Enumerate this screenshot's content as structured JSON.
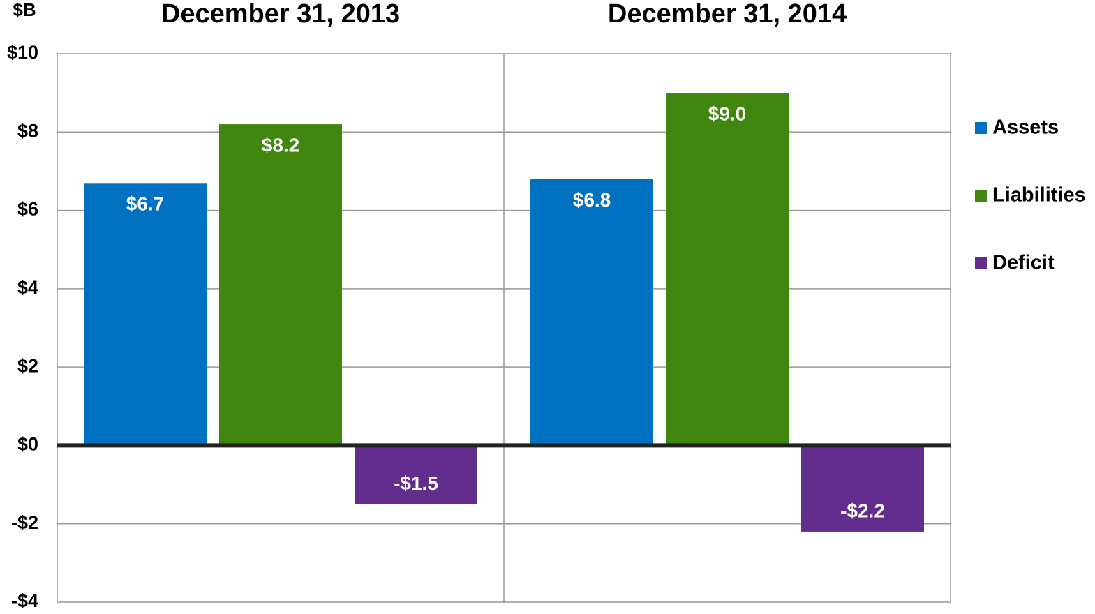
{
  "chart_data": {
    "type": "bar",
    "y_axis_label": "$B",
    "categories": [
      "December 31, 2013",
      "December 31, 2014"
    ],
    "series": [
      {
        "name": "Assets",
        "color": "#0070c0",
        "values": [
          6.7,
          6.8
        ],
        "value_labels": [
          "$6.7",
          "$6.8"
        ]
      },
      {
        "name": "Liabilities",
        "color": "#41860e",
        "values": [
          8.2,
          9.0
        ],
        "value_labels": [
          "$8.2",
          "$9.0"
        ]
      },
      {
        "name": "Deficit",
        "color": "#632d8e",
        "values": [
          -1.5,
          -2.2
        ],
        "value_labels": [
          "-$1.5",
          "-$2.2"
        ]
      }
    ],
    "ylim": [
      -4,
      10
    ],
    "yticks": [
      {
        "value": -4,
        "label": "-$4"
      },
      {
        "value": -2,
        "label": "-$2"
      },
      {
        "value": 0,
        "label": "$0"
      },
      {
        "value": 2,
        "label": "$2"
      },
      {
        "value": 4,
        "label": "$4"
      },
      {
        "value": 6,
        "label": "$6"
      },
      {
        "value": 8,
        "label": "$8"
      },
      {
        "value": 10,
        "label": "$10"
      }
    ],
    "grid": true,
    "legend": "right"
  }
}
